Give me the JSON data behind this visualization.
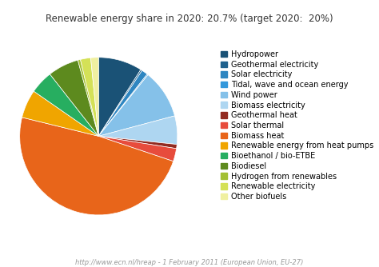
{
  "title": "Renewable energy share in 2020: 20.7% (target 2020:  20%)",
  "footer": "http://www.ecn.nl/hreap - 1 February 2011 (European Union, EU-27)",
  "labels": [
    "Hydropower",
    "Geothermal electricity",
    "Solar electricity",
    "Tidal, wave and ocean energy",
    "Wind power",
    "Biomass electricity",
    "Geothermal heat",
    "Solar thermal",
    "Biomass heat",
    "Renewable energy from heat pumps",
    "Bioethanol / bio-ETBE",
    "Biodiesel",
    "Hydrogen from renewables",
    "Renewable electricity",
    "Other biofuels"
  ],
  "values": [
    8.5,
    0.3,
    1.2,
    0.2,
    9.5,
    5.5,
    0.8,
    2.5,
    46.0,
    5.5,
    4.5,
    6.0,
    0.5,
    2.0,
    1.5
  ],
  "colors": [
    "#1a5276",
    "#1f618d",
    "#2e86c1",
    "#3498db",
    "#85c1e9",
    "#aed6f1",
    "#922b21",
    "#e74c3c",
    "#e8651a",
    "#f0a500",
    "#27ae60",
    "#5d8a1e",
    "#a3c034",
    "#d4e157",
    "#f0f0a0"
  ],
  "background_color": "#ffffff",
  "title_fontsize": 8.5,
  "legend_fontsize": 7.0,
  "footer_fontsize": 6.0,
  "startangle": 90
}
